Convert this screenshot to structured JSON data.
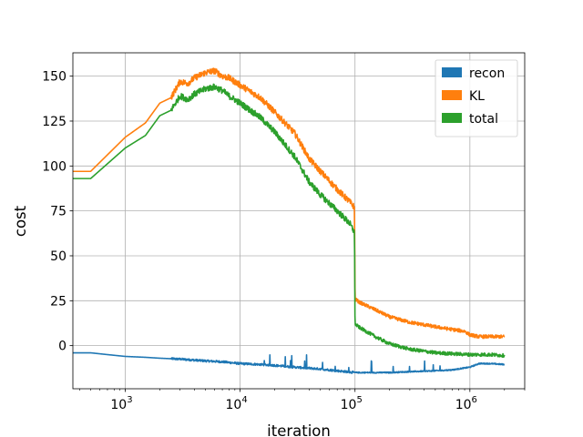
{
  "chart_data": {
    "type": "line",
    "title": "",
    "xlabel": "iteration",
    "ylabel": "cost",
    "xscale": "log",
    "xlim": [
      350,
      3000000
    ],
    "ylim": [
      -24,
      163
    ],
    "grid": true,
    "legend_position": "top-right",
    "x_ticks": [
      {
        "value": 1000,
        "base": "10",
        "exp": "3"
      },
      {
        "value": 10000,
        "base": "10",
        "exp": "4"
      },
      {
        "value": 100000,
        "base": "10",
        "exp": "5"
      },
      {
        "value": 1000000,
        "base": "10",
        "exp": "6"
      }
    ],
    "y_ticks": [
      0,
      25,
      50,
      75,
      100,
      125,
      150
    ],
    "series": [
      {
        "name": "recon",
        "color": "#1f77b4",
        "noise": 1.2,
        "x": [
          350,
          500,
          700,
          1000,
          1500,
          2000,
          3000,
          5000,
          7000,
          10000,
          15000,
          20000,
          30000,
          50000,
          70000,
          100000,
          150000,
          200000,
          300000,
          500000,
          700000,
          1000000,
          1200000,
          1500000,
          2000000
        ],
        "y": [
          -4,
          -4,
          -5,
          -6,
          -6.5,
          -7,
          -7.5,
          -8.5,
          -9,
          -10,
          -10.5,
          -11,
          -12,
          -13,
          -14,
          -15,
          -15,
          -15,
          -14.5,
          -14,
          -13.5,
          -12,
          -10,
          -10,
          -10.5
        ]
      },
      {
        "name": "KL",
        "color": "#ff7f0e",
        "noise": 3.5,
        "x": [
          350,
          500,
          1000,
          1500,
          2000,
          2500,
          3000,
          3500,
          4000,
          5000,
          6000,
          7000,
          8000,
          10000,
          15000,
          20000,
          30000,
          40000,
          50000,
          70000,
          90000,
          99000,
          100000,
          110000,
          150000,
          200000,
          300000,
          500000,
          700000,
          900000,
          1000000,
          1200000,
          1500000,
          2000000
        ],
        "y": [
          97,
          97,
          116,
          124,
          135,
          138,
          147,
          146,
          149,
          152,
          153,
          150,
          149,
          145,
          138,
          130,
          118,
          104,
          97,
          87,
          80,
          77,
          26,
          24,
          20,
          16,
          13,
          10.5,
          9,
          8,
          6,
          5,
          5,
          5
        ]
      },
      {
        "name": "total",
        "color": "#2ca02c",
        "noise": 3.5,
        "x": [
          350,
          500,
          1000,
          1500,
          2000,
          2500,
          3000,
          3500,
          4000,
          5000,
          6000,
          7000,
          8000,
          10000,
          15000,
          20000,
          30000,
          40000,
          50000,
          70000,
          90000,
          99000,
          100000,
          110000,
          150000,
          200000,
          300000,
          500000,
          700000,
          1000000,
          1500000,
          2000000
        ],
        "y": [
          93,
          93,
          110,
          117,
          128,
          131,
          139,
          137,
          140,
          143,
          144,
          142,
          139,
          135,
          127,
          119,
          105,
          91,
          84,
          75,
          68,
          63,
          12,
          10,
          5,
          1,
          -2,
          -4,
          -4.5,
          -5,
          -5,
          -5.5
        ]
      }
    ]
  }
}
